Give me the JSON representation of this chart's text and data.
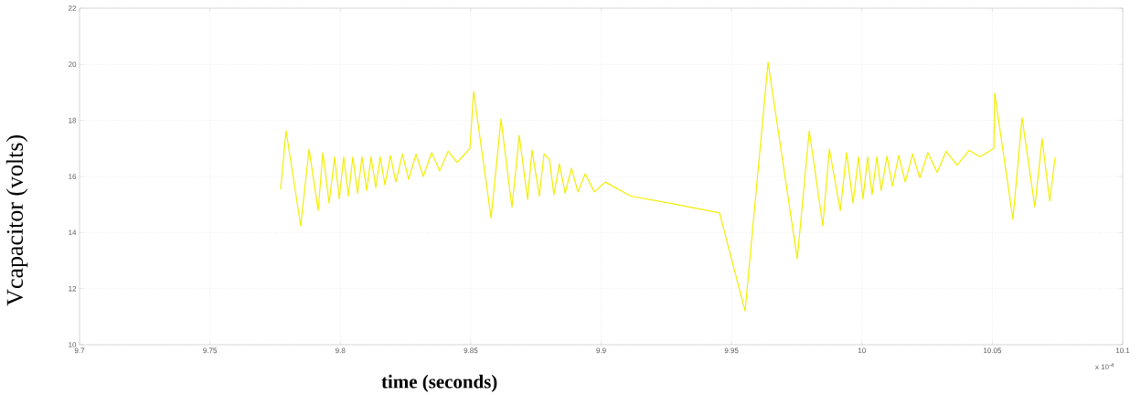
{
  "chart_data": {
    "type": "line",
    "xlabel": "time (seconds)",
    "ylabel": "Vcapacitor (volts)",
    "annotations": [
      "x 10$^{-4}$"
    ],
    "xlim": [
      9.7,
      10.1
    ],
    "xticks": [
      9.7,
      9.75,
      9.8,
      9.85,
      9.9,
      9.95,
      10,
      10.05,
      10.1
    ],
    "ylim": [
      10,
      22
    ],
    "yticks": [
      10,
      12,
      14,
      16,
      18,
      20,
      22
    ],
    "grid": true,
    "series": [
      {
        "color": "#f2ee00",
        "x": [
          9.7771,
          9.7792,
          9.7848,
          9.788,
          9.7915,
          9.7933,
          9.7957,
          9.7978,
          9.7996,
          9.8013,
          9.8031,
          9.8048,
          9.8066,
          9.8083,
          9.8101,
          9.8118,
          9.8136,
          9.8153,
          9.8171,
          9.8192,
          9.8213,
          9.8238,
          9.8262,
          9.829,
          9.8318,
          9.835,
          9.8381,
          9.8413,
          9.8448,
          9.8497,
          9.8511,
          9.8578,
          9.8616,
          9.8658,
          9.8686,
          9.8718,
          9.8735,
          9.8763,
          9.8781,
          9.8802,
          9.8819,
          9.884,
          9.8862,
          9.8886,
          9.8911,
          9.8939,
          9.8974,
          9.9016,
          9.9114,
          9.9289,
          9.9454,
          9.9552,
          9.964,
          9.9752,
          9.9798,
          9.985,
          9.9875,
          9.9917,
          9.9941,
          9.9966,
          9.9987,
          10.0004,
          10.0022,
          10.0039,
          10.0057,
          10.0074,
          10.0096,
          10.0117,
          10.0141,
          10.0166,
          10.0194,
          10.0222,
          10.0253,
          10.0288,
          10.0323,
          10.0365,
          10.0411,
          10.0453,
          10.0506,
          10.0509,
          10.0579,
          10.0614,
          10.0663,
          10.0691,
          10.072,
          10.0741
        ],
        "values": [
          15.54,
          17.63,
          14.24,
          16.98,
          14.79,
          16.85,
          15.05,
          16.7,
          15.2,
          16.7,
          15.3,
          16.7,
          15.4,
          16.7,
          15.5,
          16.7,
          15.6,
          16.7,
          15.7,
          16.75,
          15.8,
          16.8,
          15.9,
          16.8,
          16.0,
          16.85,
          16.2,
          16.9,
          16.5,
          17.0,
          19.03,
          14.53,
          18.05,
          14.9,
          17.47,
          15.18,
          16.94,
          15.3,
          16.8,
          16.6,
          15.35,
          16.45,
          15.4,
          16.3,
          15.45,
          16.1,
          15.45,
          15.8,
          15.3,
          15.0,
          14.7,
          11.2,
          20.07,
          13.06,
          17.63,
          14.24,
          16.98,
          14.79,
          16.85,
          15.05,
          16.7,
          15.2,
          16.7,
          15.35,
          16.7,
          15.5,
          16.72,
          15.65,
          16.75,
          15.8,
          16.8,
          15.95,
          16.85,
          16.15,
          16.9,
          16.4,
          16.93,
          16.7,
          17.0,
          18.97,
          14.47,
          18.1,
          14.92,
          17.34,
          15.12,
          16.69
        ]
      }
    ]
  }
}
